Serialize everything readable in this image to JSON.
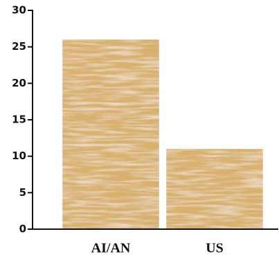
{
  "chart_data": {
    "type": "bar",
    "categories": [
      "AI/AN",
      "US"
    ],
    "values": [
      26,
      11
    ],
    "color": "#d9b16e",
    "ylim": [
      0,
      30
    ],
    "yticks": [
      0,
      5,
      10,
      15,
      20,
      25,
      30
    ],
    "grid": false
  }
}
